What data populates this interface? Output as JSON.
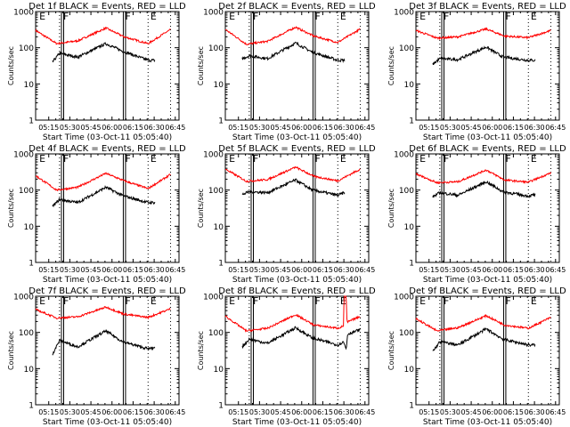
{
  "chart_data": [
    {
      "type": "line",
      "title": "Det 1f BLACK = Events, RED = LLD",
      "detector": "1f",
      "xlabel": "Start Time (03-Oct-11 05:05:40)",
      "ylabel": "Counts/sec",
      "yscale": "log",
      "ylim": [
        1,
        1000
      ],
      "ytick_labels": [
        "1",
        "10",
        "100",
        "1000"
      ],
      "xtick_labels": [
        "05:15",
        "05:30",
        "05:45",
        "06:00",
        "06:15",
        "06:30",
        "06:45"
      ],
      "xlim_minutes_from_start": [
        0,
        102
      ],
      "markers": [
        {
          "label": "E",
          "t": 2
        },
        {
          "label": "F",
          "t": 19
        },
        {
          "label": "F",
          "t": 63
        },
        {
          "label": "E",
          "t": 81
        }
      ],
      "dotted_lines_t": [
        17,
        80,
        96
      ],
      "solid_double_lines_t": [
        19,
        63
      ],
      "series": [
        {
          "name": "LLD",
          "color": "#ff0000",
          "t": [
            0,
            15,
            30,
            50,
            63,
            80,
            96
          ],
          "values": [
            300,
            130,
            155,
            350,
            200,
            130,
            320
          ]
        },
        {
          "name": "Events",
          "color": "#000000",
          "t": [
            12,
            17,
            30,
            50,
            62,
            80,
            85
          ],
          "values": [
            40,
            70,
            55,
            130,
            80,
            45,
            45
          ]
        }
      ]
    },
    {
      "type": "line",
      "title": "Det 2f BLACK = Events, RED = LLD",
      "detector": "2f",
      "xlabel": "Start Time (03-Oct-11 05:05:40)",
      "ylabel": "Counts/sec",
      "yscale": "log",
      "ylim": [
        1,
        1000
      ],
      "ytick_labels": [
        "1",
        "10",
        "100",
        "1000"
      ],
      "xtick_labels": [
        "05:15",
        "05:30",
        "05:45",
        "06:00",
        "06:15",
        "06:30",
        "06:45"
      ],
      "xlim_minutes_from_start": [
        0,
        102
      ],
      "markers": [
        {
          "label": "E",
          "t": 2
        },
        {
          "label": "F",
          "t": 19
        },
        {
          "label": "F",
          "t": 63
        },
        {
          "label": "E",
          "t": 81
        }
      ],
      "dotted_lines_t": [
        17,
        80,
        96
      ],
      "solid_double_lines_t": [
        19,
        63
      ],
      "series": [
        {
          "name": "LLD",
          "color": "#ff0000",
          "t": [
            0,
            15,
            30,
            50,
            63,
            80,
            96
          ],
          "values": [
            320,
            125,
            150,
            370,
            210,
            140,
            330
          ]
        },
        {
          "name": "Events",
          "color": "#000000",
          "t": [
            12,
            17,
            30,
            50,
            62,
            80,
            85
          ],
          "values": [
            50,
            60,
            50,
            135,
            75,
            45,
            45
          ]
        }
      ]
    },
    {
      "type": "line",
      "title": "Det 3f BLACK = Events, RED = LLD",
      "detector": "3f",
      "xlabel": "Start Time (03-Oct-11 05:05:40)",
      "ylabel": "Counts/sec",
      "yscale": "log",
      "ylim": [
        1,
        1000
      ],
      "ytick_labels": [
        "1",
        "10",
        "100",
        "1000"
      ],
      "xtick_labels": [
        "05:15",
        "05:30",
        "05:45",
        "06:00",
        "06:15",
        "06:30",
        "06:45"
      ],
      "xlim_minutes_from_start": [
        0,
        102
      ],
      "markers": [
        {
          "label": "E",
          "t": 2
        },
        {
          "label": "F",
          "t": 19
        },
        {
          "label": "F",
          "t": 63
        },
        {
          "label": "E",
          "t": 81
        }
      ],
      "dotted_lines_t": [
        17,
        80,
        96
      ],
      "solid_double_lines_t": [
        19,
        63
      ],
      "series": [
        {
          "name": "LLD",
          "color": "#ff0000",
          "t": [
            0,
            15,
            30,
            50,
            63,
            80,
            96
          ],
          "values": [
            300,
            185,
            200,
            330,
            210,
            190,
            300
          ]
        },
        {
          "name": "Events",
          "color": "#000000",
          "t": [
            12,
            17,
            30,
            50,
            62,
            80,
            85
          ],
          "values": [
            35,
            50,
            47,
            105,
            55,
            45,
            45
          ]
        }
      ]
    },
    {
      "type": "line",
      "title": "Det 4f BLACK = Events, RED = LLD",
      "detector": "4f",
      "xlabel": "Start Time (03-Oct-11 05:05:40)",
      "ylabel": "Counts/sec",
      "yscale": "log",
      "ylim": [
        1,
        1000
      ],
      "ytick_labels": [
        "1",
        "10",
        "100",
        "1000"
      ],
      "xtick_labels": [
        "05:15",
        "05:30",
        "05:45",
        "06:00",
        "06:15",
        "06:30",
        "06:45"
      ],
      "xlim_minutes_from_start": [
        0,
        102
      ],
      "markers": [
        {
          "label": "E",
          "t": 2
        },
        {
          "label": "F",
          "t": 19
        },
        {
          "label": "F",
          "t": 63
        },
        {
          "label": "E",
          "t": 81
        }
      ],
      "dotted_lines_t": [
        17,
        80,
        96
      ],
      "solid_double_lines_t": [
        19,
        63
      ],
      "series": [
        {
          "name": "LLD",
          "color": "#ff0000",
          "t": [
            0,
            15,
            30,
            50,
            63,
            80,
            96
          ],
          "values": [
            250,
            100,
            120,
            290,
            180,
            110,
            270
          ]
        },
        {
          "name": "Events",
          "color": "#000000",
          "t": [
            12,
            17,
            30,
            50,
            62,
            80,
            85
          ],
          "values": [
            35,
            55,
            45,
            120,
            70,
            45,
            45
          ]
        }
      ]
    },
    {
      "type": "line",
      "title": "Det 5f BLACK = Events, RED = LLD",
      "detector": "5f",
      "xlabel": "Start Time (03-Oct-11 05:05:40)",
      "ylabel": "Counts/sec",
      "yscale": "log",
      "ylim": [
        1,
        1000
      ],
      "ytick_labels": [
        "1",
        "10",
        "100",
        "1000"
      ],
      "xtick_labels": [
        "05:15",
        "05:30",
        "05:45",
        "06:00",
        "06:15",
        "06:30",
        "06:45"
      ],
      "xlim_minutes_from_start": [
        0,
        102
      ],
      "markers": [
        {
          "label": "E",
          "t": 2
        },
        {
          "label": "F",
          "t": 19
        },
        {
          "label": "F",
          "t": 63
        },
        {
          "label": "E",
          "t": 81
        }
      ],
      "dotted_lines_t": [
        17,
        80,
        96
      ],
      "solid_double_lines_t": [
        19,
        63
      ],
      "series": [
        {
          "name": "LLD",
          "color": "#ff0000",
          "t": [
            0,
            15,
            30,
            50,
            63,
            80,
            96
          ],
          "values": [
            380,
            175,
            195,
            430,
            240,
            180,
            380
          ]
        },
        {
          "name": "Events",
          "color": "#000000",
          "t": [
            12,
            17,
            30,
            50,
            62,
            80,
            85
          ],
          "values": [
            75,
            90,
            85,
            190,
            100,
            72,
            85
          ]
        }
      ]
    },
    {
      "type": "line",
      "title": "Det 6f BLACK = Events, RED = LLD",
      "detector": "6f",
      "xlabel": "Start Time (03-Oct-11 05:05:40)",
      "ylabel": "Counts/sec",
      "yscale": "log",
      "ylim": [
        1,
        1000
      ],
      "ytick_labels": [
        "1",
        "10",
        "100",
        "1000"
      ],
      "xtick_labels": [
        "05:15",
        "05:30",
        "05:45",
        "06:00",
        "06:15",
        "06:30",
        "06:45"
      ],
      "xlim_minutes_from_start": [
        0,
        102
      ],
      "markers": [
        {
          "label": "E",
          "t": 2
        },
        {
          "label": "F",
          "t": 19
        },
        {
          "label": "F",
          "t": 63
        },
        {
          "label": "E",
          "t": 81
        }
      ],
      "dotted_lines_t": [
        17,
        80,
        96
      ],
      "solid_double_lines_t": [
        19,
        63
      ],
      "series": [
        {
          "name": "LLD",
          "color": "#ff0000",
          "t": [
            0,
            15,
            30,
            50,
            63,
            80,
            96
          ],
          "values": [
            280,
            160,
            170,
            360,
            190,
            165,
            300
          ]
        },
        {
          "name": "Events",
          "color": "#000000",
          "t": [
            12,
            17,
            30,
            50,
            62,
            80,
            85
          ],
          "values": [
            65,
            85,
            72,
            170,
            90,
            68,
            75
          ]
        }
      ]
    },
    {
      "type": "line",
      "title": "Det 7f BLACK = Events, RED = LLD",
      "detector": "7f",
      "xlabel": "Start Time (03-Oct-11 05:05:40)",
      "ylabel": "Counts/sec",
      "yscale": "log",
      "ylim": [
        1,
        1000
      ],
      "ytick_labels": [
        "1",
        "10",
        "100",
        "1000"
      ],
      "xtick_labels": [
        "05:15",
        "05:30",
        "05:45",
        "06:00",
        "06:15",
        "06:30",
        "06:45"
      ],
      "xlim_minutes_from_start": [
        0,
        102
      ],
      "markers": [
        {
          "label": "E",
          "t": 2
        },
        {
          "label": "F",
          "t": 19
        },
        {
          "label": "F",
          "t": 63
        },
        {
          "label": "E",
          "t": 81
        }
      ],
      "dotted_lines_t": [
        17,
        80,
        96
      ],
      "solid_double_lines_t": [
        19,
        63
      ],
      "series": [
        {
          "name": "LLD",
          "color": "#ff0000",
          "t": [
            0,
            15,
            30,
            50,
            63,
            80,
            96
          ],
          "values": [
            430,
            250,
            270,
            500,
            320,
            260,
            450
          ]
        },
        {
          "name": "Events",
          "color": "#000000",
          "t": [
            12,
            17,
            30,
            50,
            62,
            80,
            85
          ],
          "values": [
            25,
            60,
            40,
            110,
            55,
            35,
            38
          ]
        }
      ]
    },
    {
      "type": "line",
      "title": "Det 8f BLACK = Events, RED = LLD",
      "detector": "8f",
      "xlabel": "Start Time (03-Oct-11 05:05:40)",
      "ylabel": "Counts/sec",
      "yscale": "log",
      "ylim": [
        1,
        1000
      ],
      "ytick_labels": [
        "1",
        "10",
        "100",
        "1000"
      ],
      "xtick_labels": [
        "05:15",
        "05:30",
        "05:45",
        "06:00",
        "06:15",
        "06:30",
        "06:45"
      ],
      "xlim_minutes_from_start": [
        0,
        102
      ],
      "markers": [
        {
          "label": "E",
          "t": 2
        },
        {
          "label": "F",
          "t": 19
        },
        {
          "label": "F",
          "t": 63
        },
        {
          "label": "E",
          "t": 81
        }
      ],
      "dotted_lines_t": [
        17,
        80,
        96
      ],
      "solid_double_lines_t": [
        19,
        63
      ],
      "series": [
        {
          "name": "LLD",
          "color": "#ff0000",
          "t": [
            0,
            15,
            30,
            50,
            63,
            80,
            84,
            84.5,
            86,
            86.5,
            96
          ],
          "values": [
            280,
            110,
            130,
            310,
            160,
            130,
            150,
            1000,
            1000,
            190,
            280
          ]
        },
        {
          "name": "Events",
          "color": "#000000",
          "t": [
            12,
            17,
            30,
            50,
            62,
            80,
            84,
            86,
            87,
            96
          ],
          "values": [
            40,
            65,
            50,
            135,
            70,
            45,
            55,
            35,
            90,
            120
          ]
        }
      ]
    },
    {
      "type": "line",
      "title": "Det 9f BLACK = Events, RED = LLD",
      "detector": "9f",
      "xlabel": "Start Time (03-Oct-11 05:05:40)",
      "ylabel": "Counts/sec",
      "yscale": "log",
      "ylim": [
        1,
        1000
      ],
      "ytick_labels": [
        "1",
        "10",
        "100",
        "1000"
      ],
      "xtick_labels": [
        "05:15",
        "05:30",
        "05:45",
        "06:00",
        "06:15",
        "06:30",
        "06:45"
      ],
      "xlim_minutes_from_start": [
        0,
        102
      ],
      "markers": [
        {
          "label": "E",
          "t": 2
        },
        {
          "label": "F",
          "t": 19
        },
        {
          "label": "F",
          "t": 63
        },
        {
          "label": "E",
          "t": 81
        }
      ],
      "dotted_lines_t": [
        17,
        80,
        96
      ],
      "solid_double_lines_t": [
        19,
        63
      ],
      "series": [
        {
          "name": "LLD",
          "color": "#ff0000",
          "t": [
            0,
            15,
            30,
            50,
            63,
            80,
            96
          ],
          "values": [
            240,
            110,
            135,
            290,
            160,
            130,
            260
          ]
        },
        {
          "name": "Events",
          "color": "#000000",
          "t": [
            12,
            17,
            30,
            50,
            62,
            80,
            85
          ],
          "values": [
            30,
            55,
            45,
            125,
            65,
            45,
            45
          ]
        }
      ]
    }
  ],
  "xtick_minutes": [
    9.33,
    24.33,
    39.33,
    54.33,
    69.33,
    84.33,
    99.33
  ]
}
